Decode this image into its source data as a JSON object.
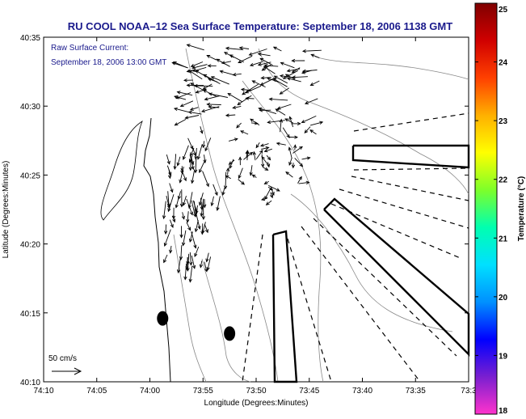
{
  "chart_data": {
    "type": "vector-field-map",
    "title": "RU COOL  NOAA–12  Sea Surface Temperature:  September 18, 2006 1138 GMT",
    "annotation": {
      "line1": "Raw Surface Current:",
      "line2": "September 18, 2006 13:00 GMT"
    },
    "xlabel": "Longitude (Degrees:Minutes)",
    "ylabel": "Latitude (Degrees:Minutes)",
    "x_ticks": [
      "74:10",
      "74:05",
      "74:00",
      "73:55",
      "73:50",
      "73:45",
      "73:40",
      "73:35",
      "73:3"
    ],
    "y_ticks": [
      "40:10",
      "40:15",
      "40:20",
      "40:25",
      "40:30",
      "40:35"
    ],
    "xlim_min_west": [
      34.5,
      73.0
    ],
    "ylim_min_north": [
      10,
      35
    ],
    "scale_label": "50 cm/s",
    "colorbar": {
      "label": "Temperature (°C)",
      "ticks": [
        "18",
        "19",
        "20",
        "21",
        "22",
        "23",
        "24",
        "25"
      ],
      "range": [
        18,
        25
      ],
      "colors": [
        "#ff33cc",
        "#7a1fd0",
        "#0000ff",
        "#0090ff",
        "#00e0ff",
        "#00ffb0",
        "#7dff2a",
        "#ffff00",
        "#ffb000",
        "#ff4000",
        "#d00000",
        "#800000"
      ]
    },
    "stations_deg_min": [
      {
        "lon": 73.98,
        "lat": 14.6
      },
      {
        "lon": 73.875,
        "lat": 13.5
      }
    ],
    "current_vectors_sample": [
      {
        "lon": 73.88,
        "lat": 33.0,
        "u": -8,
        "v": 6
      },
      {
        "lon": 73.9,
        "lat": 31.0,
        "u": -18,
        "v": 8
      },
      {
        "lon": 73.93,
        "lat": 28.5,
        "u": -14,
        "v": 4
      },
      {
        "lon": 73.97,
        "lat": 25.0,
        "u": -4,
        "v": -10
      },
      {
        "lon": 73.98,
        "lat": 22.0,
        "u": -2,
        "v": -12
      },
      {
        "lon": 73.85,
        "lat": 25.5,
        "u": 12,
        "v": -6
      },
      {
        "lon": 73.78,
        "lat": 26.5,
        "u": 8,
        "v": -2
      }
    ]
  }
}
